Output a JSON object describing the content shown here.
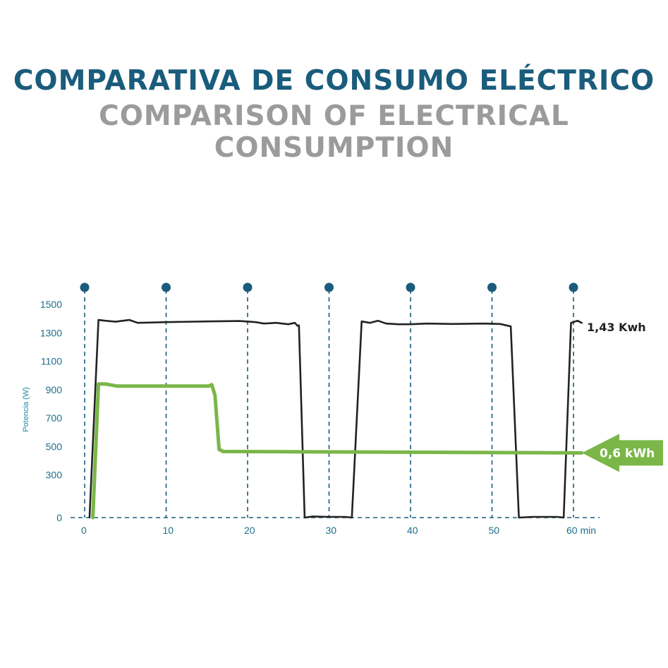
{
  "title_es": "COMPARATIVA DE CONSUMO ELÉCTRICO",
  "title_en": "COMPARISON OF ELECTRICAL CONSUMPTION",
  "chart_data": {
    "type": "line",
    "ylabel": "Potencia (W)",
    "x_unit": "min",
    "xlim": [
      0,
      62
    ],
    "ylim": [
      0,
      1500
    ],
    "x_ticks": [
      "0",
      "10",
      "20",
      "30",
      "40",
      "50",
      "60 min"
    ],
    "x_tick_values": [
      0,
      10,
      20,
      30,
      40,
      50,
      60
    ],
    "y_ticks": [
      "0",
      "300",
      "500",
      "700",
      "900",
      "1100",
      "1300",
      "1500"
    ],
    "y_tick_values": [
      0,
      300,
      500,
      700,
      900,
      1100,
      1300,
      1500
    ],
    "grid": "vertical dashed lines at 10-minute marks with markers on top",
    "series": [
      {
        "label": "1,43 Kwh",
        "color": "#222222",
        "x": [
          0.6,
          1.7,
          2.5,
          3.8,
          5.5,
          6.5,
          8,
          10,
          15,
          19,
          21,
          22,
          23.5,
          25,
          25.8,
          26.1,
          26.3,
          27,
          28,
          30,
          32,
          32.8,
          34,
          35,
          36,
          37,
          38.5,
          40,
          42,
          45,
          49,
          51,
          52.3,
          53.3,
          55,
          58,
          58.8,
          59.7,
          60.5,
          61
        ],
        "y": [
          0,
          1390,
          1385,
          1378,
          1390,
          1370,
          1372,
          1375,
          1380,
          1383,
          1375,
          1365,
          1370,
          1360,
          1370,
          1350,
          1352,
          0,
          8,
          5,
          5,
          0,
          1380,
          1370,
          1385,
          1365,
          1360,
          1360,
          1365,
          1362,
          1365,
          1362,
          1345,
          0,
          5,
          5,
          0,
          1370,
          1385,
          1370
        ]
      },
      {
        "label": "0,6 kWh",
        "color": "#7ab648",
        "x": [
          1,
          1.7,
          2.5,
          4,
          10,
          15.2,
          15.6,
          16,
          16.5,
          17,
          61
        ],
        "y": [
          0,
          940,
          940,
          925,
          925,
          925,
          935,
          860,
          480,
          465,
          455
        ]
      }
    ]
  }
}
